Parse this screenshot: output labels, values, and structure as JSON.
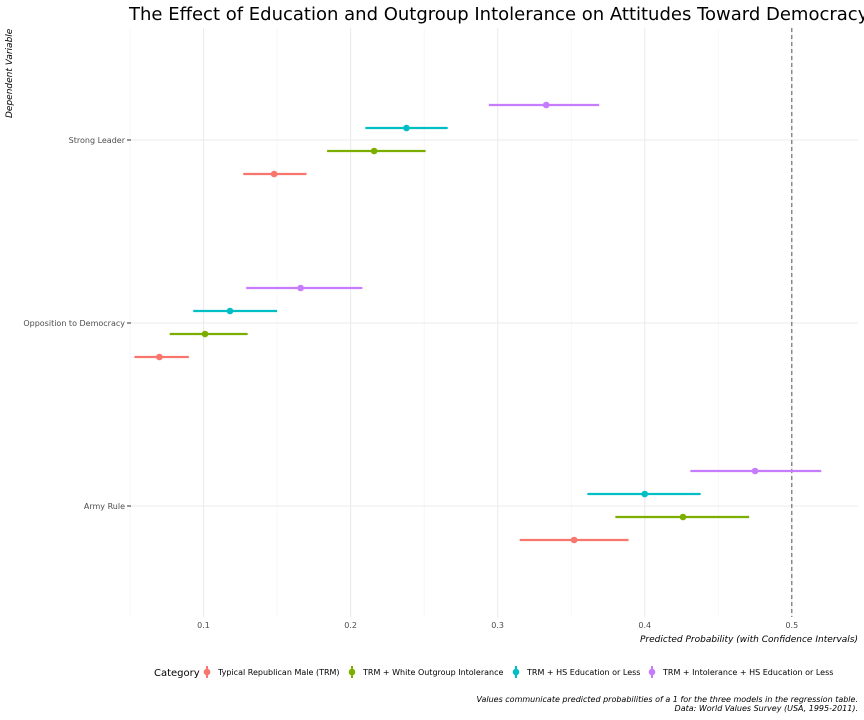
{
  "chart_data": {
    "type": "scatter",
    "title": "The Effect of Education and Outgroup Intolerance on Attitudes Toward Democracy for Republicans",
    "xlabel": "Predicted Probability (with Confidence Intervals)",
    "ylabel": "Dependent Variable",
    "xlim": [
      0.05,
      0.545
    ],
    "x_ticks": [
      "0.1",
      "0.2",
      "0.3",
      "0.4",
      "0.5"
    ],
    "categories": [
      "Army Rule",
      "Opposition to Democracy",
      "Strong Leader"
    ],
    "reference_line_x": 0.5,
    "legend": {
      "title": "Category",
      "position": "bottom"
    },
    "series": [
      {
        "name": "Typical Republican Male (TRM)",
        "color": "#F8766D",
        "values": [
          0.352,
          0.07,
          0.148
        ],
        "lower": [
          0.315,
          0.053,
          0.127
        ],
        "upper": [
          0.389,
          0.09,
          0.17
        ]
      },
      {
        "name": "TRM + White Outgroup Intolerance",
        "color": "#7CAE00",
        "values": [
          0.426,
          0.101,
          0.216
        ],
        "lower": [
          0.38,
          0.077,
          0.184
        ],
        "upper": [
          0.471,
          0.13,
          0.251
        ]
      },
      {
        "name": "TRM + HS Education or Less",
        "color": "#00BFC4",
        "values": [
          0.4,
          0.118,
          0.238
        ],
        "lower": [
          0.361,
          0.093,
          0.21
        ],
        "upper": [
          0.438,
          0.15,
          0.266
        ]
      },
      {
        "name": "TRM + Intolerance + HS Education or Less",
        "color": "#C77CFF",
        "values": [
          0.475,
          0.166,
          0.333
        ],
        "lower": [
          0.431,
          0.129,
          0.294
        ],
        "upper": [
          0.52,
          0.208,
          0.369
        ]
      }
    ],
    "caption": [
      "Values communicate predicted probabilities of a 1 for the three models in the regression table.",
      "Data: World Values Survey (USA, 1995-2011)."
    ]
  }
}
